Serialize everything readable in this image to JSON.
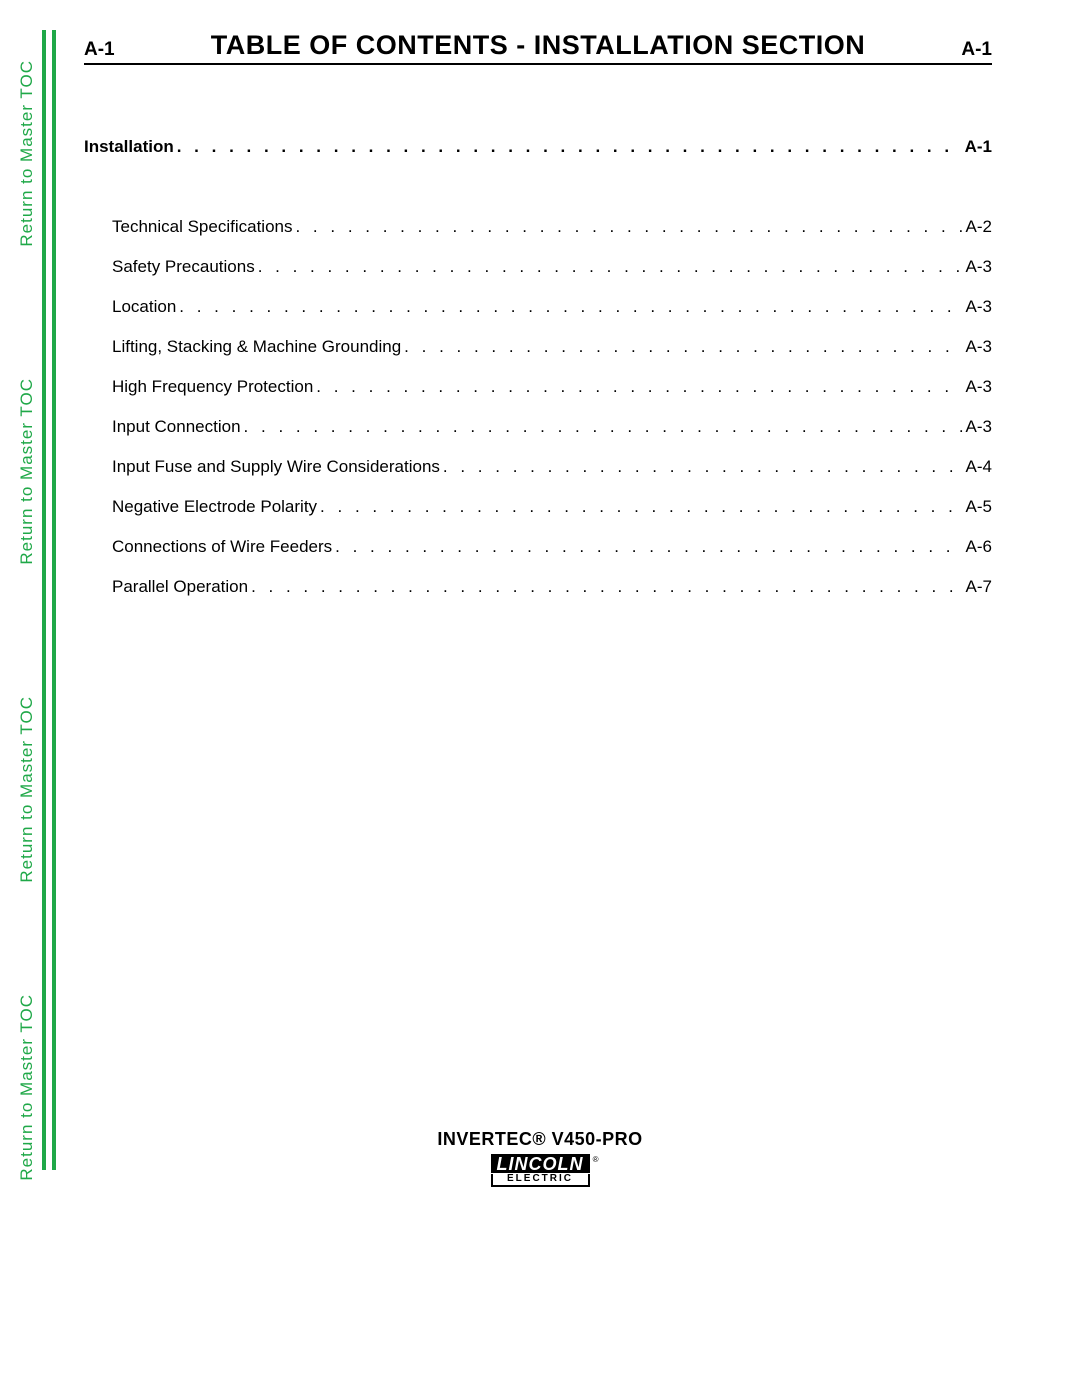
{
  "colors": {
    "green": "#1fa848",
    "text": "#000000",
    "background": "#ffffff"
  },
  "side_link_text": "Return to Master TOC",
  "side_link_count": 4,
  "header": {
    "left_code": "A-1",
    "title": "TABLE OF CONTENTS - INSTALLATION SECTION",
    "right_code": "A-1",
    "title_fontsize": 27,
    "code_fontsize": 19
  },
  "toc": {
    "fontsize": 17,
    "section": {
      "label": "Installation",
      "page": "A-1"
    },
    "entries": [
      {
        "label": "Technical Specifications",
        "page": "A-2"
      },
      {
        "label": "Safety Precautions",
        "page": "A-3"
      },
      {
        "label": "Location",
        "page": "A-3"
      },
      {
        "label": "Lifting, Stacking & Machine Grounding",
        "page": "A-3"
      },
      {
        "label": "High Frequency Protection",
        "page": "A-3"
      },
      {
        "label": "Input Connection",
        "page": "A-3"
      },
      {
        "label": "Input Fuse and Supply Wire Considerations",
        "page": "A-4"
      },
      {
        "label": "Negative Electrode Polarity",
        "page": "A-5"
      },
      {
        "label": "Connections of Wire Feeders",
        "page": "A-6"
      },
      {
        "label": "Parallel Operation",
        "page": "A-7"
      }
    ]
  },
  "footer": {
    "model": "INVERTEC® V450-PRO",
    "logo_top": "LINCOLN",
    "logo_reg": "®",
    "logo_bottom": "ELECTRIC"
  }
}
